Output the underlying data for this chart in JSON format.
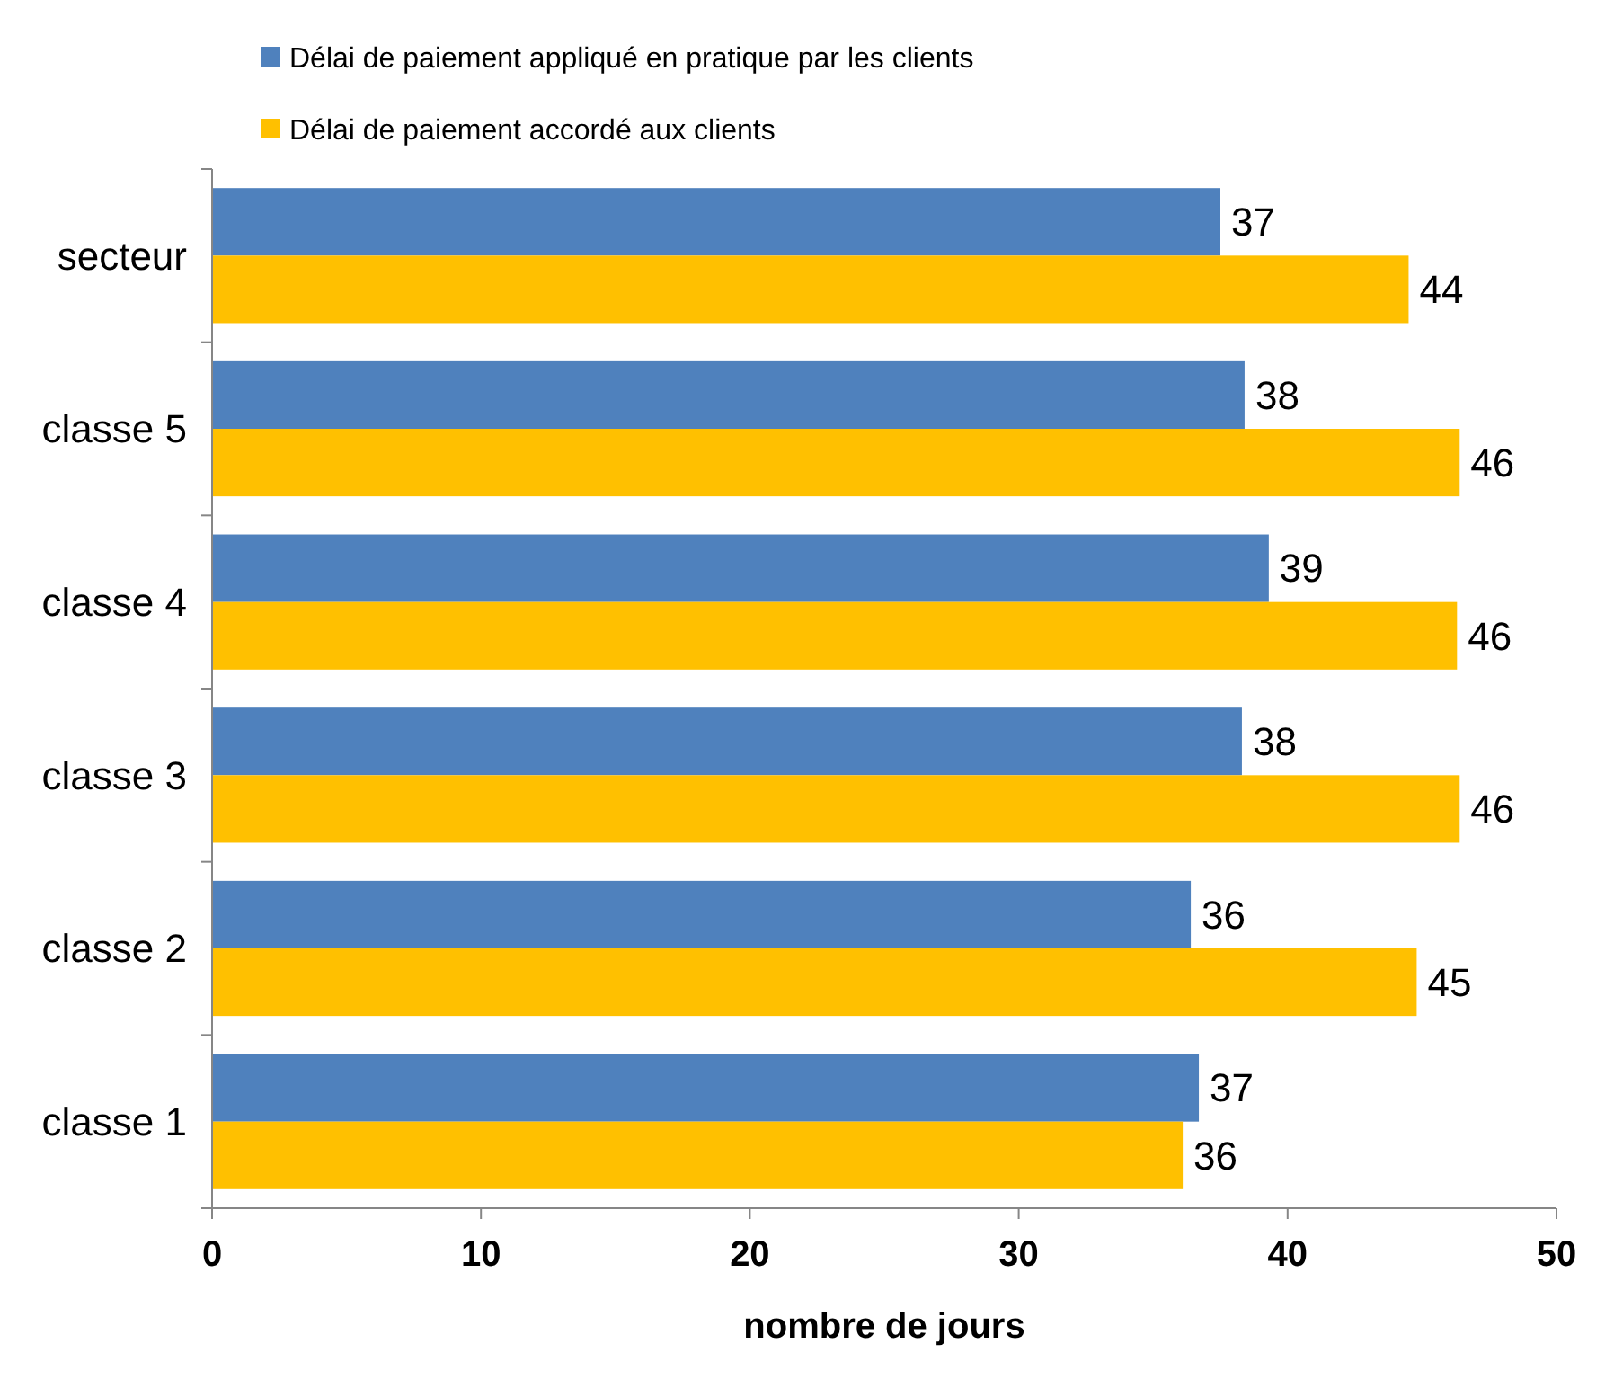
{
  "chart_data": {
    "type": "bar",
    "orientation": "horizontal",
    "xlabel": "nombre de jours",
    "categories": [
      "secteur",
      "classe 5",
      "classe 4",
      "classe 3",
      "classe 2",
      "classe 1"
    ],
    "series": [
      {
        "name": "Délai de paiement appliqué en pratique par les clients",
        "color": "#4f81bd",
        "values": [
          37.5,
          38.4,
          39.3,
          38.3,
          36.4,
          36.7
        ],
        "value_labels": [
          "37",
          "38",
          "39",
          "38",
          "36",
          "37"
        ]
      },
      {
        "name": "Délai de paiement accordé aux clients",
        "color": "#ffc000",
        "values": [
          44.5,
          46.4,
          46.3,
          46.4,
          44.8,
          36.1
        ],
        "value_labels": [
          "44",
          "46",
          "46",
          "46",
          "45",
          "36"
        ]
      }
    ],
    "xlim": [
      0,
      50
    ],
    "xticks": [
      0,
      10,
      20,
      30,
      40,
      50
    ],
    "legend": "top",
    "grid": false
  }
}
